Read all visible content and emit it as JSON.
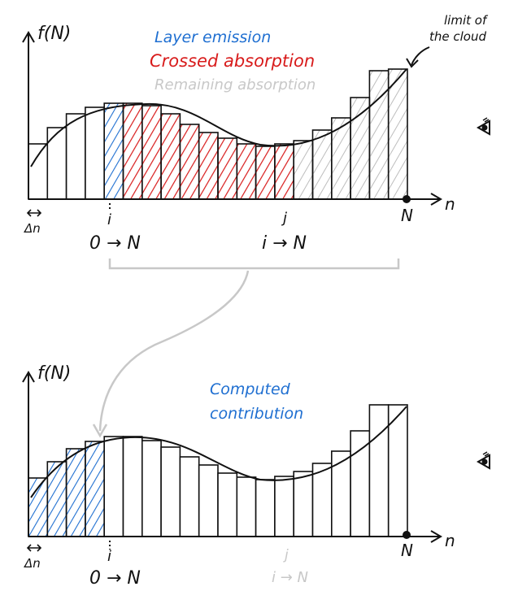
{
  "colors": {
    "ink": "#111111",
    "emission": "#1f6fd1",
    "crossed": "#d81b1b",
    "remaining": "#bdbdbd",
    "faded": "#c8c8c8"
  },
  "top": {
    "axis_label": "f(N)",
    "x_axis_label": "n",
    "legend": {
      "emission": "Layer emission",
      "crossed": "Crossed absorption",
      "remaining": "Remaining absorption"
    },
    "cloud_note": [
      "limit of",
      "the cloud"
    ],
    "tick_i": "i",
    "tick_j": "j",
    "tick_N": "N",
    "delta_n": "Δn",
    "range_1": "0 → N",
    "range_2": "i → N",
    "eye_icon": "eye-icon"
  },
  "bottom": {
    "axis_label": "f(N)",
    "x_axis_label": "n",
    "note": [
      "Computed",
      "contribution"
    ],
    "tick_i": "i",
    "tick_j": "j",
    "tick_N": "N",
    "delta_n": "Δn",
    "range_1": "0 → N",
    "range_2": "i → N",
    "eye_icon": "eye-icon"
  }
}
